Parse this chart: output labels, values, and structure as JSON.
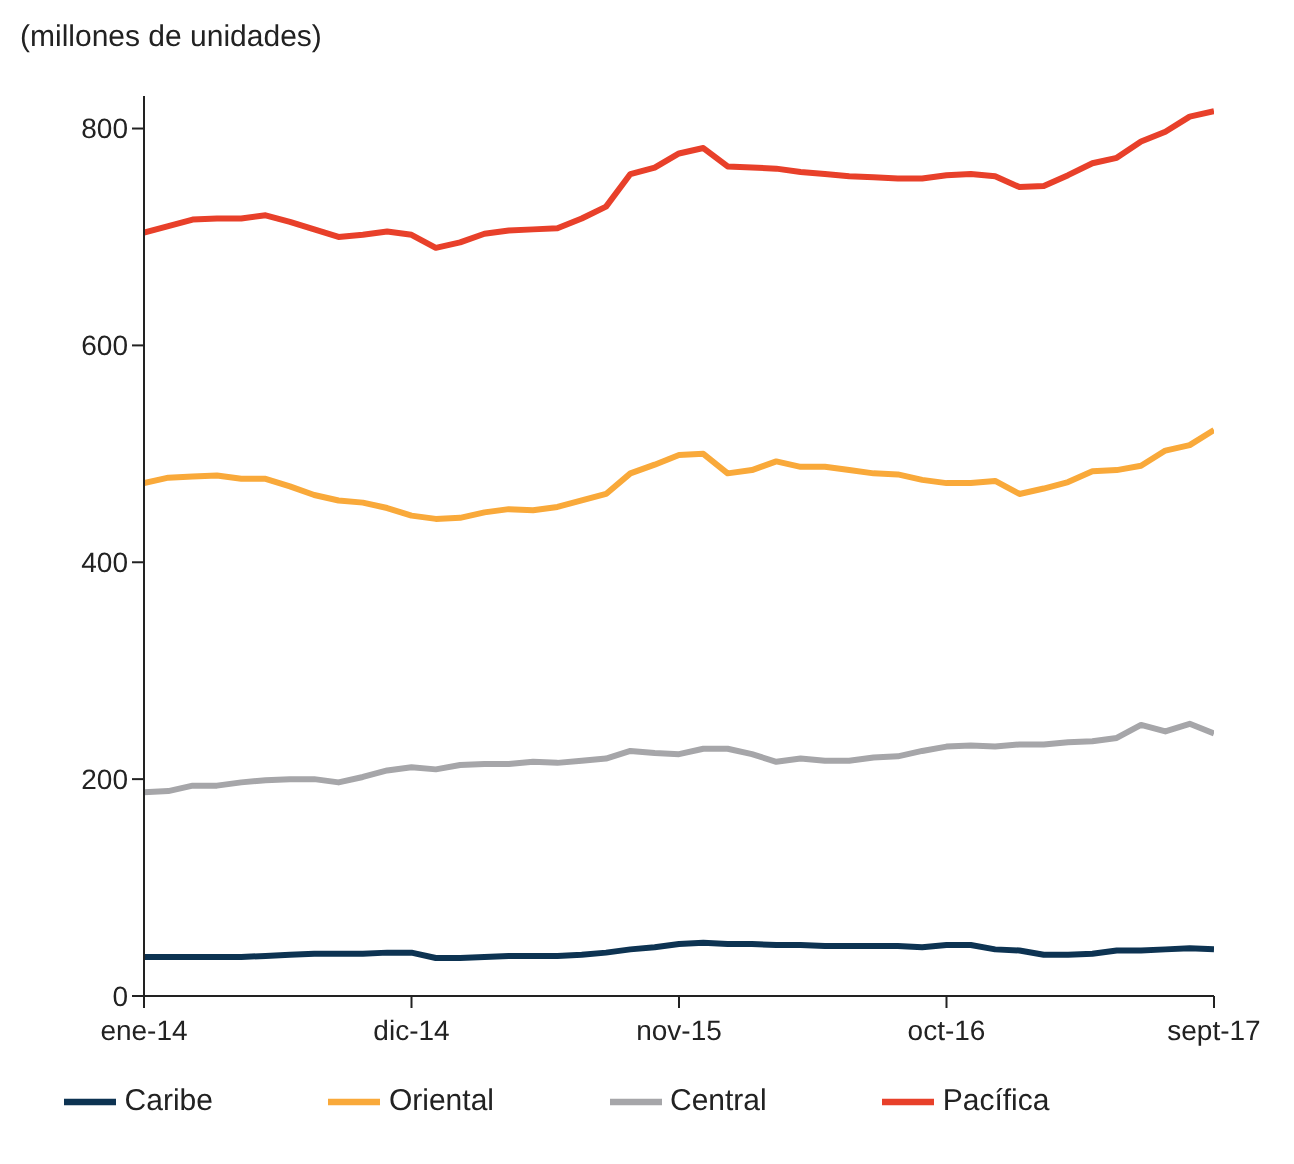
{
  "chart_data": {
    "type": "line",
    "ylabel": "(millones de unidades)",
    "categories": [
      "ene-14",
      null,
      null,
      null,
      null,
      null,
      null,
      null,
      null,
      null,
      null,
      "dic-14",
      null,
      null,
      null,
      null,
      null,
      null,
      null,
      null,
      null,
      null,
      "nov-15",
      null,
      null,
      null,
      null,
      null,
      null,
      null,
      null,
      null,
      null,
      "oct-16",
      null,
      null,
      null,
      null,
      null,
      null,
      null,
      null,
      null,
      null,
      "sept-17"
    ],
    "series": [
      {
        "name": "Caribe",
        "color": "#0d3352",
        "values": [
          36,
          36,
          36,
          36,
          36,
          37,
          38,
          39,
          39,
          39,
          40,
          40,
          35,
          35,
          36,
          37,
          37,
          37,
          38,
          40,
          43,
          45,
          48,
          49,
          48,
          48,
          47,
          47,
          46,
          46,
          46,
          46,
          45,
          47,
          47,
          43,
          42,
          38,
          38,
          39,
          42,
          42,
          43,
          44,
          43
        ]
      },
      {
        "name": "Oriental",
        "color": "#f9a93a",
        "values": [
          473,
          478,
          479,
          480,
          477,
          477,
          470,
          462,
          457,
          455,
          450,
          443,
          440,
          441,
          446,
          449,
          448,
          451,
          457,
          463,
          482,
          490,
          499,
          500,
          482,
          485,
          493,
          488,
          488,
          485,
          482,
          481,
          476,
          473,
          473,
          475,
          463,
          468,
          474,
          484,
          485,
          489,
          503,
          508,
          522
        ]
      },
      {
        "name": "Central",
        "color": "#a6a6a9",
        "values": [
          188,
          189,
          194,
          194,
          197,
          199,
          200,
          200,
          197,
          202,
          208,
          211,
          209,
          213,
          214,
          214,
          216,
          215,
          217,
          219,
          226,
          224,
          223,
          228,
          228,
          223,
          216,
          219,
          217,
          217,
          220,
          221,
          226,
          230,
          231,
          230,
          232,
          232,
          234,
          235,
          238,
          250,
          244,
          251,
          242
        ]
      },
      {
        "name": "Pacífica",
        "color": "#e8402a",
        "values": [
          704,
          710,
          716,
          717,
          717,
          720,
          714,
          707,
          700,
          702,
          705,
          702,
          690,
          695,
          703,
          706,
          707,
          708,
          717,
          728,
          758,
          764,
          777,
          782,
          765,
          764,
          763,
          760,
          758,
          756,
          755,
          754,
          754,
          757,
          758,
          756,
          746,
          747,
          757,
          768,
          773,
          788,
          797,
          811,
          816
        ]
      }
    ],
    "ylim": [
      0,
      830
    ],
    "yticks": [
      0,
      200,
      400,
      600,
      800
    ],
    "grid": false,
    "legend": "bottom",
    "marker": "none",
    "line_style": "solid"
  }
}
